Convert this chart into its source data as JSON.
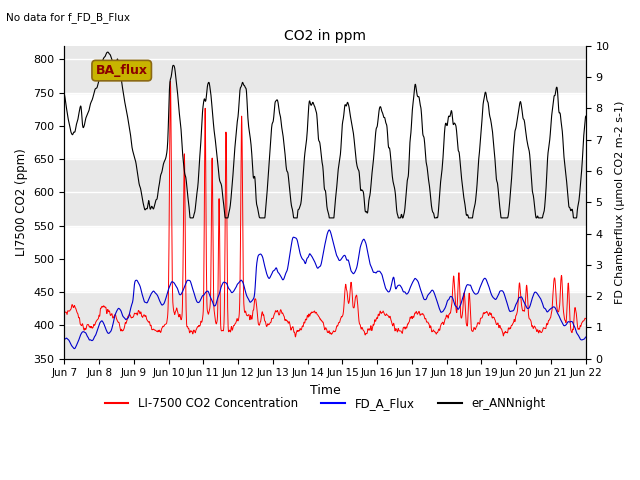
{
  "title": "CO2 in ppm",
  "subtitle": "No data for f_FD_B_Flux",
  "xlabel": "Time",
  "ylabel_left": "LI7500 CO2 (ppm)",
  "ylabel_right": "FD Chamberflux (μmol CO2 m-2 s-1)",
  "ylim_left": [
    350,
    820
  ],
  "ylim_right": [
    0.0,
    10.0
  ],
  "yticks_left": [
    350,
    400,
    450,
    500,
    550,
    600,
    650,
    700,
    750,
    800
  ],
  "yticks_right": [
    0.0,
    1.0,
    2.0,
    3.0,
    4.0,
    5.0,
    6.0,
    7.0,
    8.0,
    9.0,
    10.0
  ],
  "xtick_labels": [
    "Jun 7",
    "Jun 8",
    "Jun 9",
    "Jun 10",
    "Jun 11",
    "Jun 12",
    "Jun 13",
    "Jun 14",
    "Jun 15",
    "Jun 16",
    "Jun 17",
    "Jun 18",
    "Jun 19",
    "Jun 20",
    "Jun 21",
    "Jun 22"
  ],
  "legend_entries": [
    "LI-7500 CO2 Concentration",
    "FD_A_Flux",
    "er_ANNnight"
  ],
  "legend_colors": [
    "red",
    "blue",
    "black"
  ],
  "ba_flux_label": "BA_flux",
  "ba_flux_color": "#c8b400",
  "ba_flux_text_color": "#8b0000",
  "bg_band_color": "#e8e8e8",
  "line_color_red": "#ff0000",
  "line_color_blue": "#0000cc",
  "line_color_black": "#000000",
  "band_positions": [
    350,
    450,
    550,
    650,
    750,
    820
  ]
}
